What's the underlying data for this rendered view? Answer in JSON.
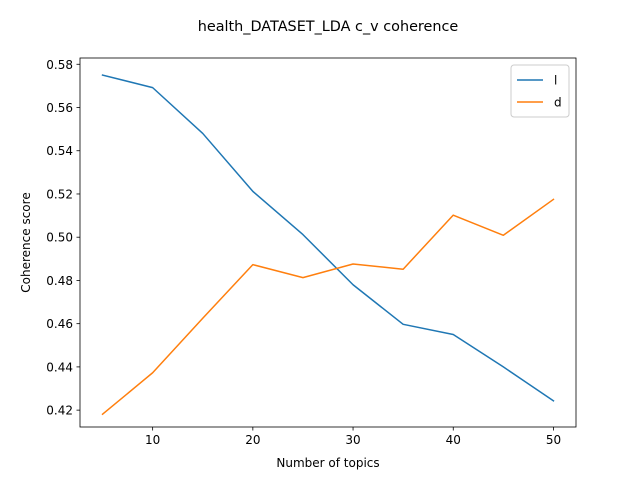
{
  "chart_data": {
    "type": "line",
    "title": "health_DATASET_LDA c_v coherence",
    "xlabel": "Number of topics",
    "ylabel": "Coherence score",
    "x": [
      5,
      10,
      15,
      20,
      25,
      30,
      35,
      40,
      45,
      50
    ],
    "xlim": [
      2.75,
      52.25
    ],
    "ylim": [
      0.4122,
      0.5829
    ],
    "xticks": [
      10,
      20,
      30,
      40,
      50
    ],
    "yticks": [
      0.42,
      0.44,
      0.46,
      0.48,
      0.5,
      0.52,
      0.54,
      0.56,
      0.58
    ],
    "ytick_labels": [
      "0.42",
      "0.44",
      "0.46",
      "0.48",
      "0.50",
      "0.52",
      "0.54",
      "0.56",
      "0.58"
    ],
    "grid": false,
    "legend_position": "top-right",
    "series": [
      {
        "name": "l",
        "color": "#1f77b4",
        "values": [
          0.575,
          0.5692,
          0.548,
          0.5212,
          0.5012,
          0.478,
          0.4597,
          0.455,
          0.44,
          0.4243
        ]
      },
      {
        "name": "d",
        "color": "#ff7f0e",
        "values": [
          0.4181,
          0.4373,
          0.4625,
          0.4873,
          0.4813,
          0.4876,
          0.4852,
          0.5102,
          0.5009,
          0.5175
        ]
      }
    ]
  }
}
